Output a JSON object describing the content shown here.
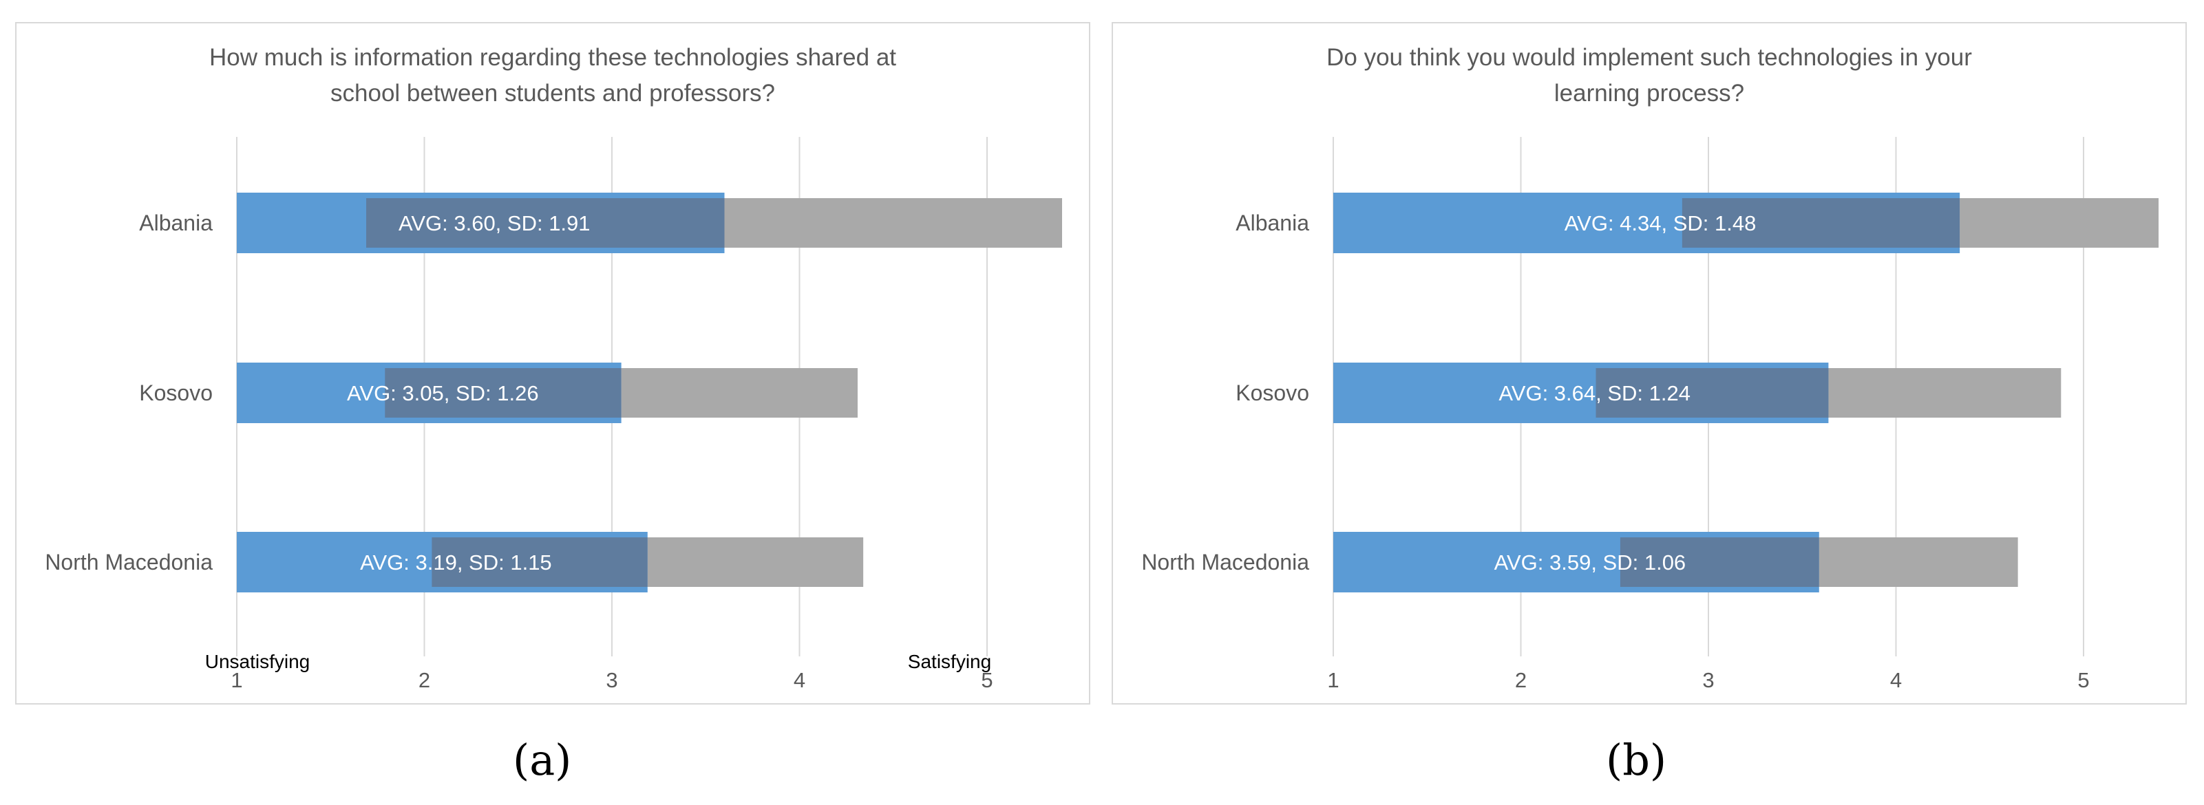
{
  "chart_data": [
    {
      "type": "bar",
      "panel": "(a)",
      "title_lines": [
        "How much is information regarding these technologies shared at",
        "school between students and professors?"
      ],
      "categories": [
        "Albania",
        "Kosovo",
        "North Macedonia"
      ],
      "avg": [
        3.6,
        3.05,
        3.19
      ],
      "sd": [
        1.91,
        1.26,
        1.15
      ],
      "labels": [
        "AVG: 3.60, SD: 1.91",
        "AVG: 3.05, SD: 1.26",
        "AVG: 3.19, SD: 1.15"
      ],
      "xlim": [
        1,
        5.4
      ],
      "xticks": [
        "1",
        "2",
        "3",
        "4",
        "5"
      ],
      "xtick_values": [
        1,
        2,
        3,
        4,
        5
      ],
      "scale_labels": {
        "low": "Unsatisfying",
        "high": "Satisfying"
      },
      "grid": true,
      "colors": {
        "avg": "#5b9bd5",
        "sd": "#a9a9a9",
        "overlap": "#5f7c9e"
      }
    },
    {
      "type": "bar",
      "panel": "(b)",
      "title_lines": [
        "Do you think you would implement such technologies in your",
        "learning process?"
      ],
      "categories": [
        "Albania",
        "Kosovo",
        "North Macedonia"
      ],
      "avg": [
        4.34,
        3.64,
        3.59
      ],
      "sd": [
        1.48,
        1.24,
        1.06
      ],
      "labels": [
        "AVG: 4.34, SD: 1.48",
        "AVG: 3.64, SD: 1.24",
        "AVG: 3.59, SD: 1.06"
      ],
      "xlim": [
        1,
        5.4
      ],
      "xticks": [
        "1",
        "2",
        "3",
        "4",
        "5"
      ],
      "xtick_values": [
        1,
        2,
        3,
        4,
        5
      ],
      "grid": true,
      "colors": {
        "avg": "#5b9bd5",
        "sd": "#a9a9a9",
        "overlap": "#5f7c9e"
      }
    }
  ],
  "captions": {
    "a": "(a)",
    "b": "(b)"
  }
}
